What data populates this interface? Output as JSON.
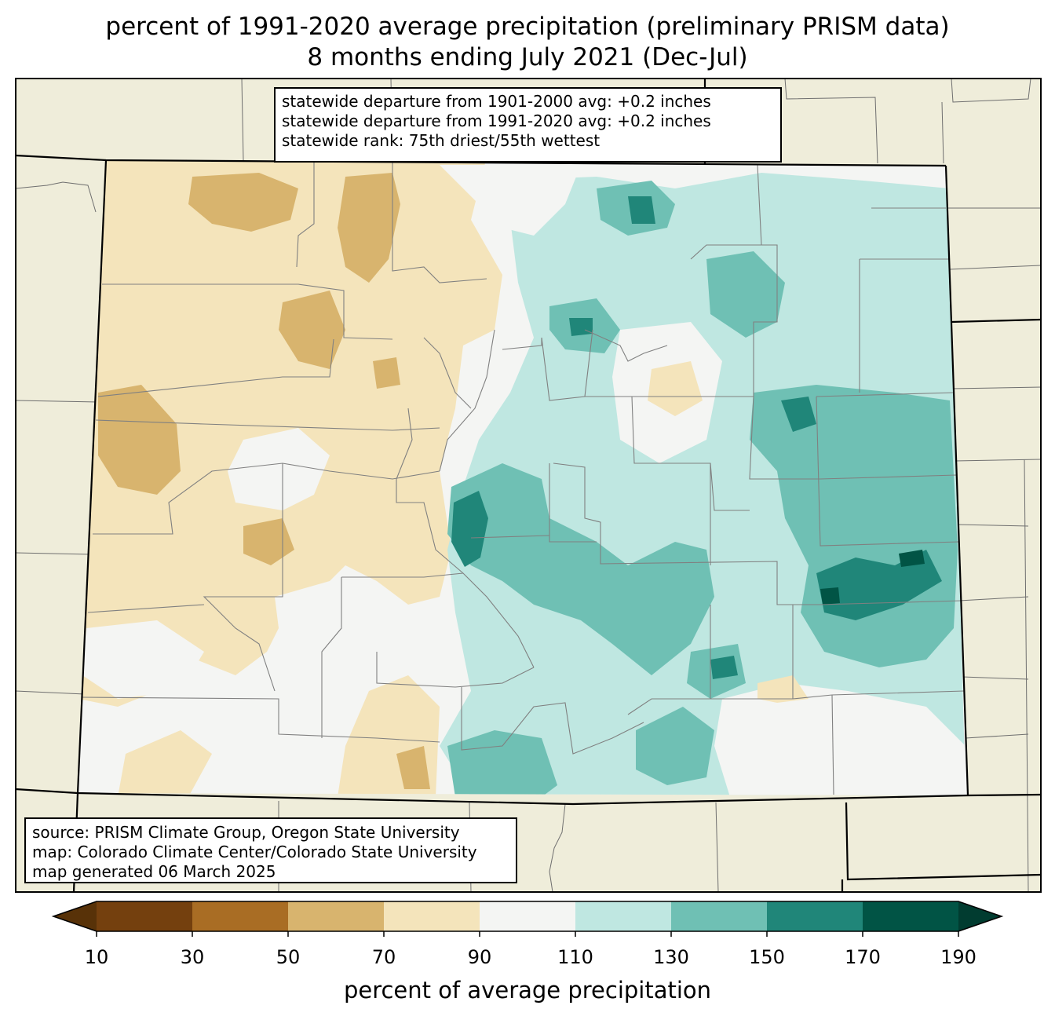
{
  "title": {
    "line1": "percent of 1991-2020 average precipitation (preliminary PRISM data)",
    "line2": "8 months ending July 2021 (Dec-Jul)"
  },
  "stats": {
    "line1": "statewide departure from 1901-2000 avg: +0.2 inches",
    "line2": "statewide departure from 1991-2020 avg: +0.2 inches",
    "line3": "statewide rank: 75th driest/55th wettest"
  },
  "source": {
    "line1": "source: PRISM Climate Group, Oregon State University",
    "line2": "map: Colorado Climate Center/Colorado State University",
    "line3": "map generated 06 March 2025"
  },
  "colorbar": {
    "label": "percent of average precipitation",
    "ticks": [
      "10",
      "30",
      "50",
      "70",
      "90",
      "110",
      "130",
      "150",
      "170",
      "190"
    ],
    "colors": [
      "#74400e",
      "#a96d24",
      "#d8b46e",
      "#f4e4bb",
      "#f4f5f3",
      "#bfe7e1",
      "#6fc0b4",
      "#208679",
      "#015445"
    ],
    "under_color": "#583208",
    "over_color": "#013c30"
  },
  "map": {
    "land_color": "#efedda",
    "state": "Colorado"
  }
}
